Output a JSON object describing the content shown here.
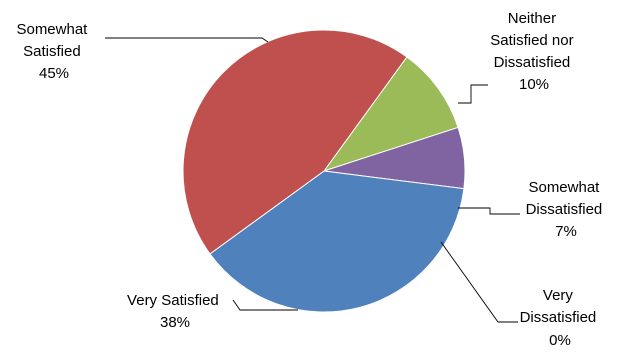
{
  "chart_data": {
    "type": "pie",
    "title": "",
    "legend": "none",
    "slices": [
      {
        "label": [
          "Neither",
          "Satisfied nor",
          "Dissatisfied"
        ],
        "percent_label": "10%",
        "value": 10,
        "color": "#9BBB59"
      },
      {
        "label": [
          "Somewhat",
          "Dissatisfied"
        ],
        "percent_label": "7%",
        "value": 7,
        "color": "#8064A2"
      },
      {
        "label": [
          "Very Satisfied"
        ],
        "percent_label": "38%",
        "value": 38,
        "color": "#4F81BD"
      },
      {
        "label": [
          "Somewhat",
          "Satisfied"
        ],
        "percent_label": "45%",
        "value": 45,
        "color": "#C0504D"
      },
      {
        "label": [
          "Very",
          "Dissatisfied"
        ],
        "percent_label": "0%",
        "value": 0,
        "color": "#F79646"
      }
    ]
  }
}
